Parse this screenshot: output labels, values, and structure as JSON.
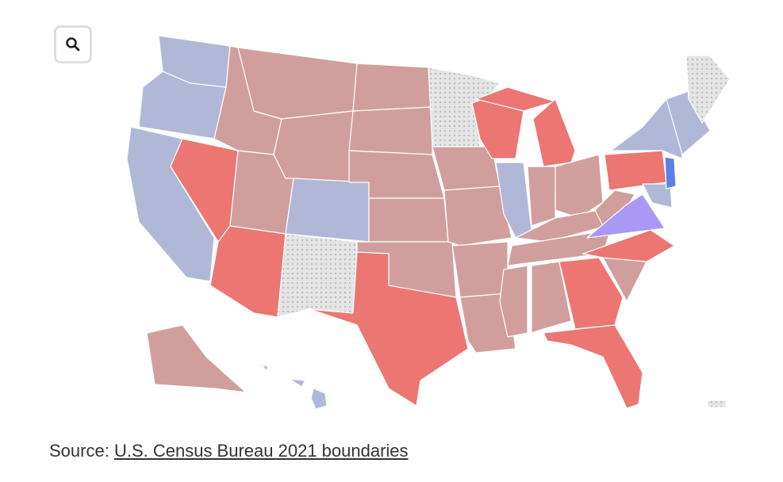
{
  "source": {
    "label": "Source:",
    "link": "U.S. Census Bureau 2021 boundaries"
  }
}
